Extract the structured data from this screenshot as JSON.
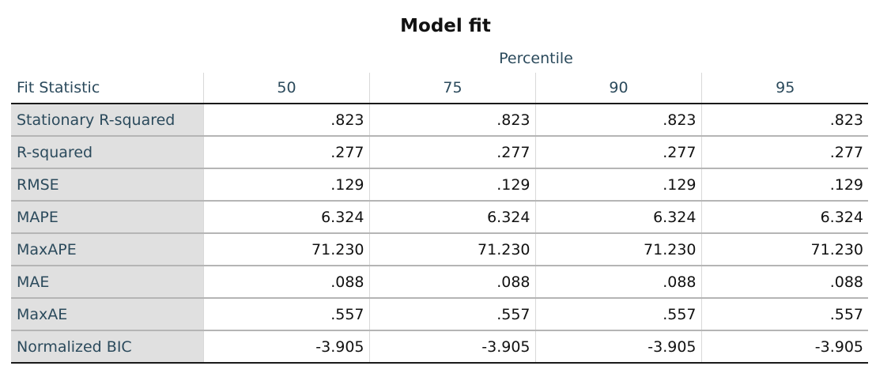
{
  "title": "Model fit",
  "table": {
    "spanning_header": "Percentile",
    "row_header_label": "Fit Statistic",
    "columns": [
      "50",
      "75",
      "90",
      "95"
    ],
    "rows": [
      {
        "label": "Stationary R-squared",
        "values": [
          ".823",
          ".823",
          ".823",
          ".823"
        ]
      },
      {
        "label": "R-squared",
        "values": [
          ".277",
          ".277",
          ".277",
          ".277"
        ]
      },
      {
        "label": "RMSE",
        "values": [
          ".129",
          ".129",
          ".129",
          ".129"
        ]
      },
      {
        "label": "MAPE",
        "values": [
          "6.324",
          "6.324",
          "6.324",
          "6.324"
        ]
      },
      {
        "label": "MaxAPE",
        "values": [
          "71.230",
          "71.230",
          "71.230",
          "71.230"
        ]
      },
      {
        "label": "MAE",
        "values": [
          ".088",
          ".088",
          ".088",
          ".088"
        ]
      },
      {
        "label": "MaxAE",
        "values": [
          ".557",
          ".557",
          ".557",
          ".557"
        ]
      },
      {
        "label": "Normalized BIC",
        "values": [
          "-3.905",
          "-3.905",
          "-3.905",
          "-3.905"
        ]
      }
    ]
  }
}
